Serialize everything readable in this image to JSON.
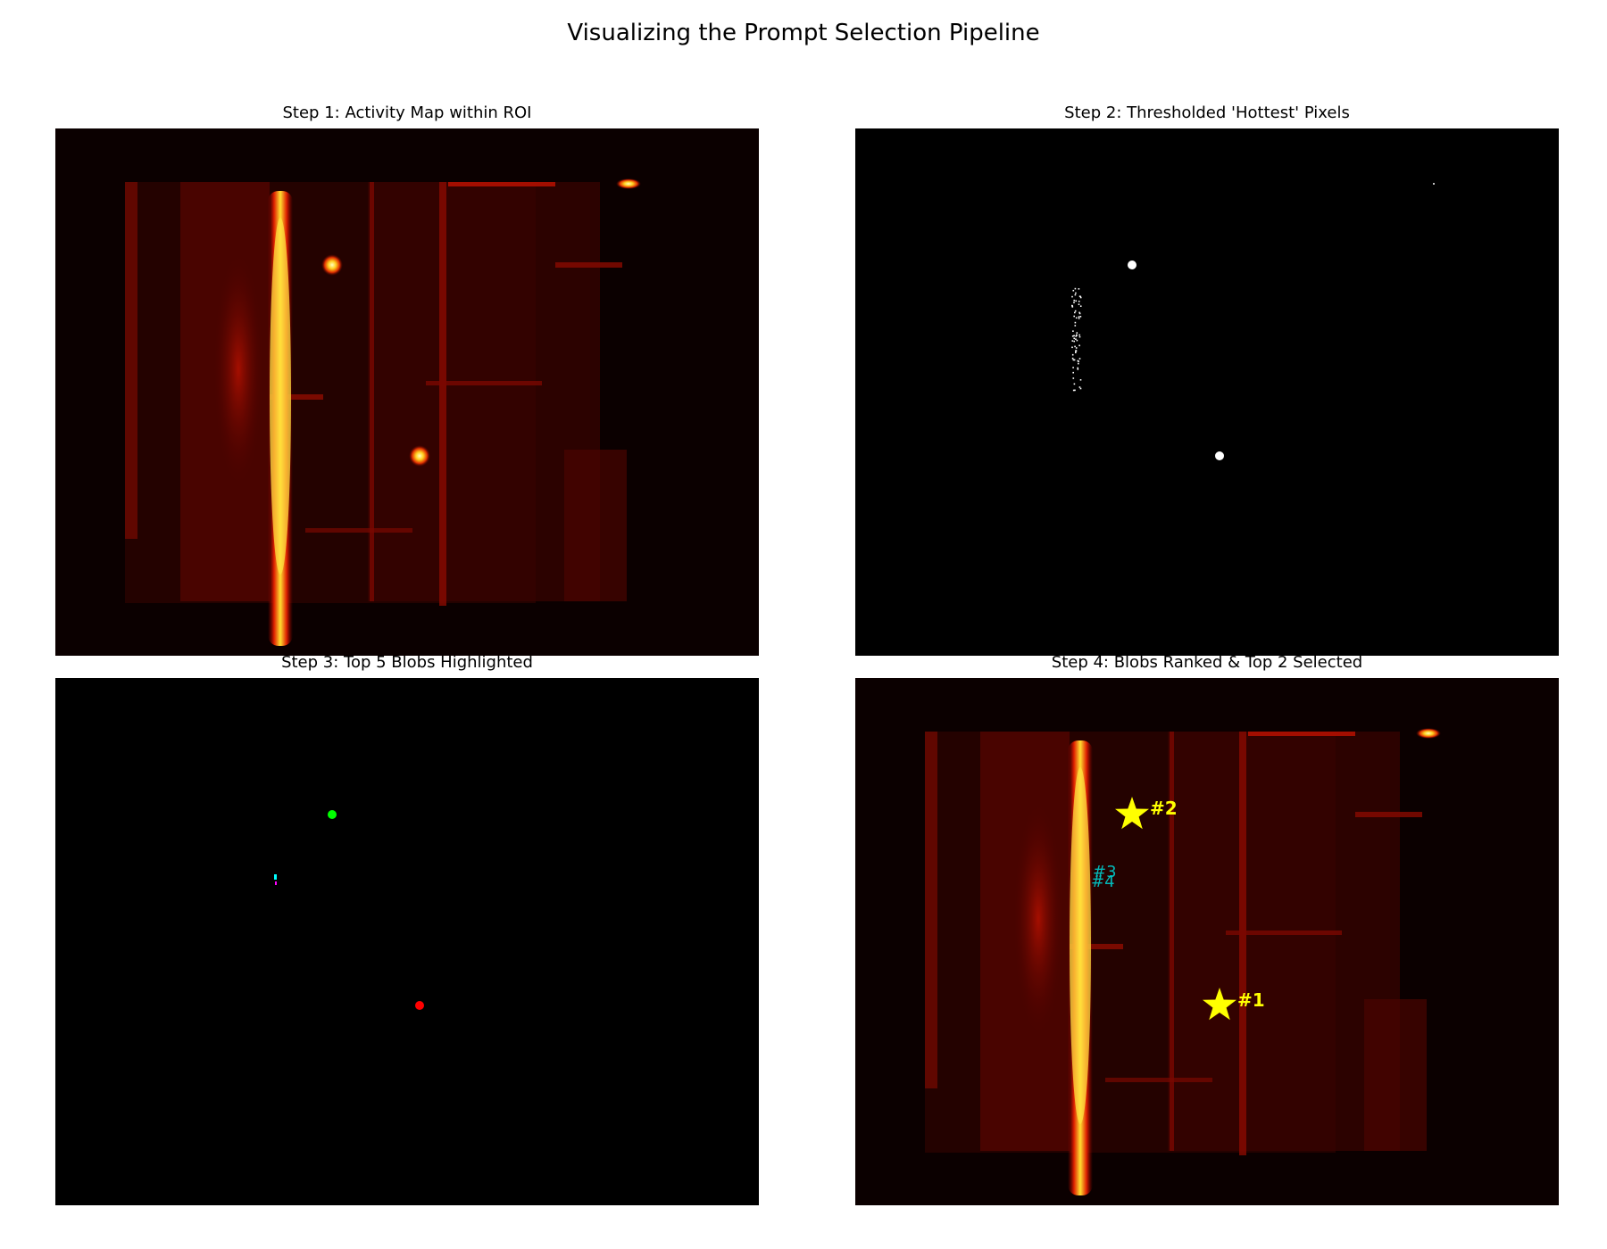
{
  "figure": {
    "title": "Visualizing the Prompt Selection Pipeline"
  },
  "chart_data": [
    {
      "type": "heatmap",
      "panel": 1,
      "title": "Step 1: Activity Map within ROI",
      "colormap": "hot",
      "axes_visible": false,
      "hot_spots": [
        {
          "label": "vertical streak",
          "intensity": "high"
        },
        {
          "label": "spot (upper)",
          "intensity": "high"
        },
        {
          "label": "spot (lower)",
          "intensity": "high"
        },
        {
          "label": "spot (top edge)",
          "intensity": "high"
        }
      ]
    },
    {
      "type": "heatmap",
      "panel": 2,
      "title": "Step 2: Thresholded 'Hottest' Pixels",
      "colormap": "binary (white on black)",
      "axes_visible": false,
      "thresholded_regions": [
        "upper spot",
        "lower spot",
        "scattered streak pixels",
        "top-right speck"
      ]
    },
    {
      "type": "heatmap",
      "panel": 3,
      "title": "Step 3: Top 5 Blobs Highlighted",
      "axes_visible": false,
      "blobs": [
        {
          "color": "#ff0000",
          "region": "lower spot"
        },
        {
          "color": "#00ff00",
          "region": "upper spot"
        },
        {
          "color": "#00ffff",
          "region": "streak fragment"
        },
        {
          "color": "#ff00ff",
          "region": "streak fragment"
        }
      ]
    },
    {
      "type": "heatmap",
      "panel": 4,
      "title": "Step 4: Blobs Ranked & Top 2 Selected",
      "colormap": "hot",
      "axes_visible": false,
      "annotations": [
        {
          "label": "#1",
          "selected": true,
          "marker": "star",
          "color": "#ffff00"
        },
        {
          "label": "#2",
          "selected": true,
          "marker": "star",
          "color": "#ffff00"
        },
        {
          "label": "#3",
          "selected": false,
          "color": "#00cccc"
        },
        {
          "label": "#4",
          "selected": false,
          "color": "#00cccc"
        }
      ]
    }
  ]
}
